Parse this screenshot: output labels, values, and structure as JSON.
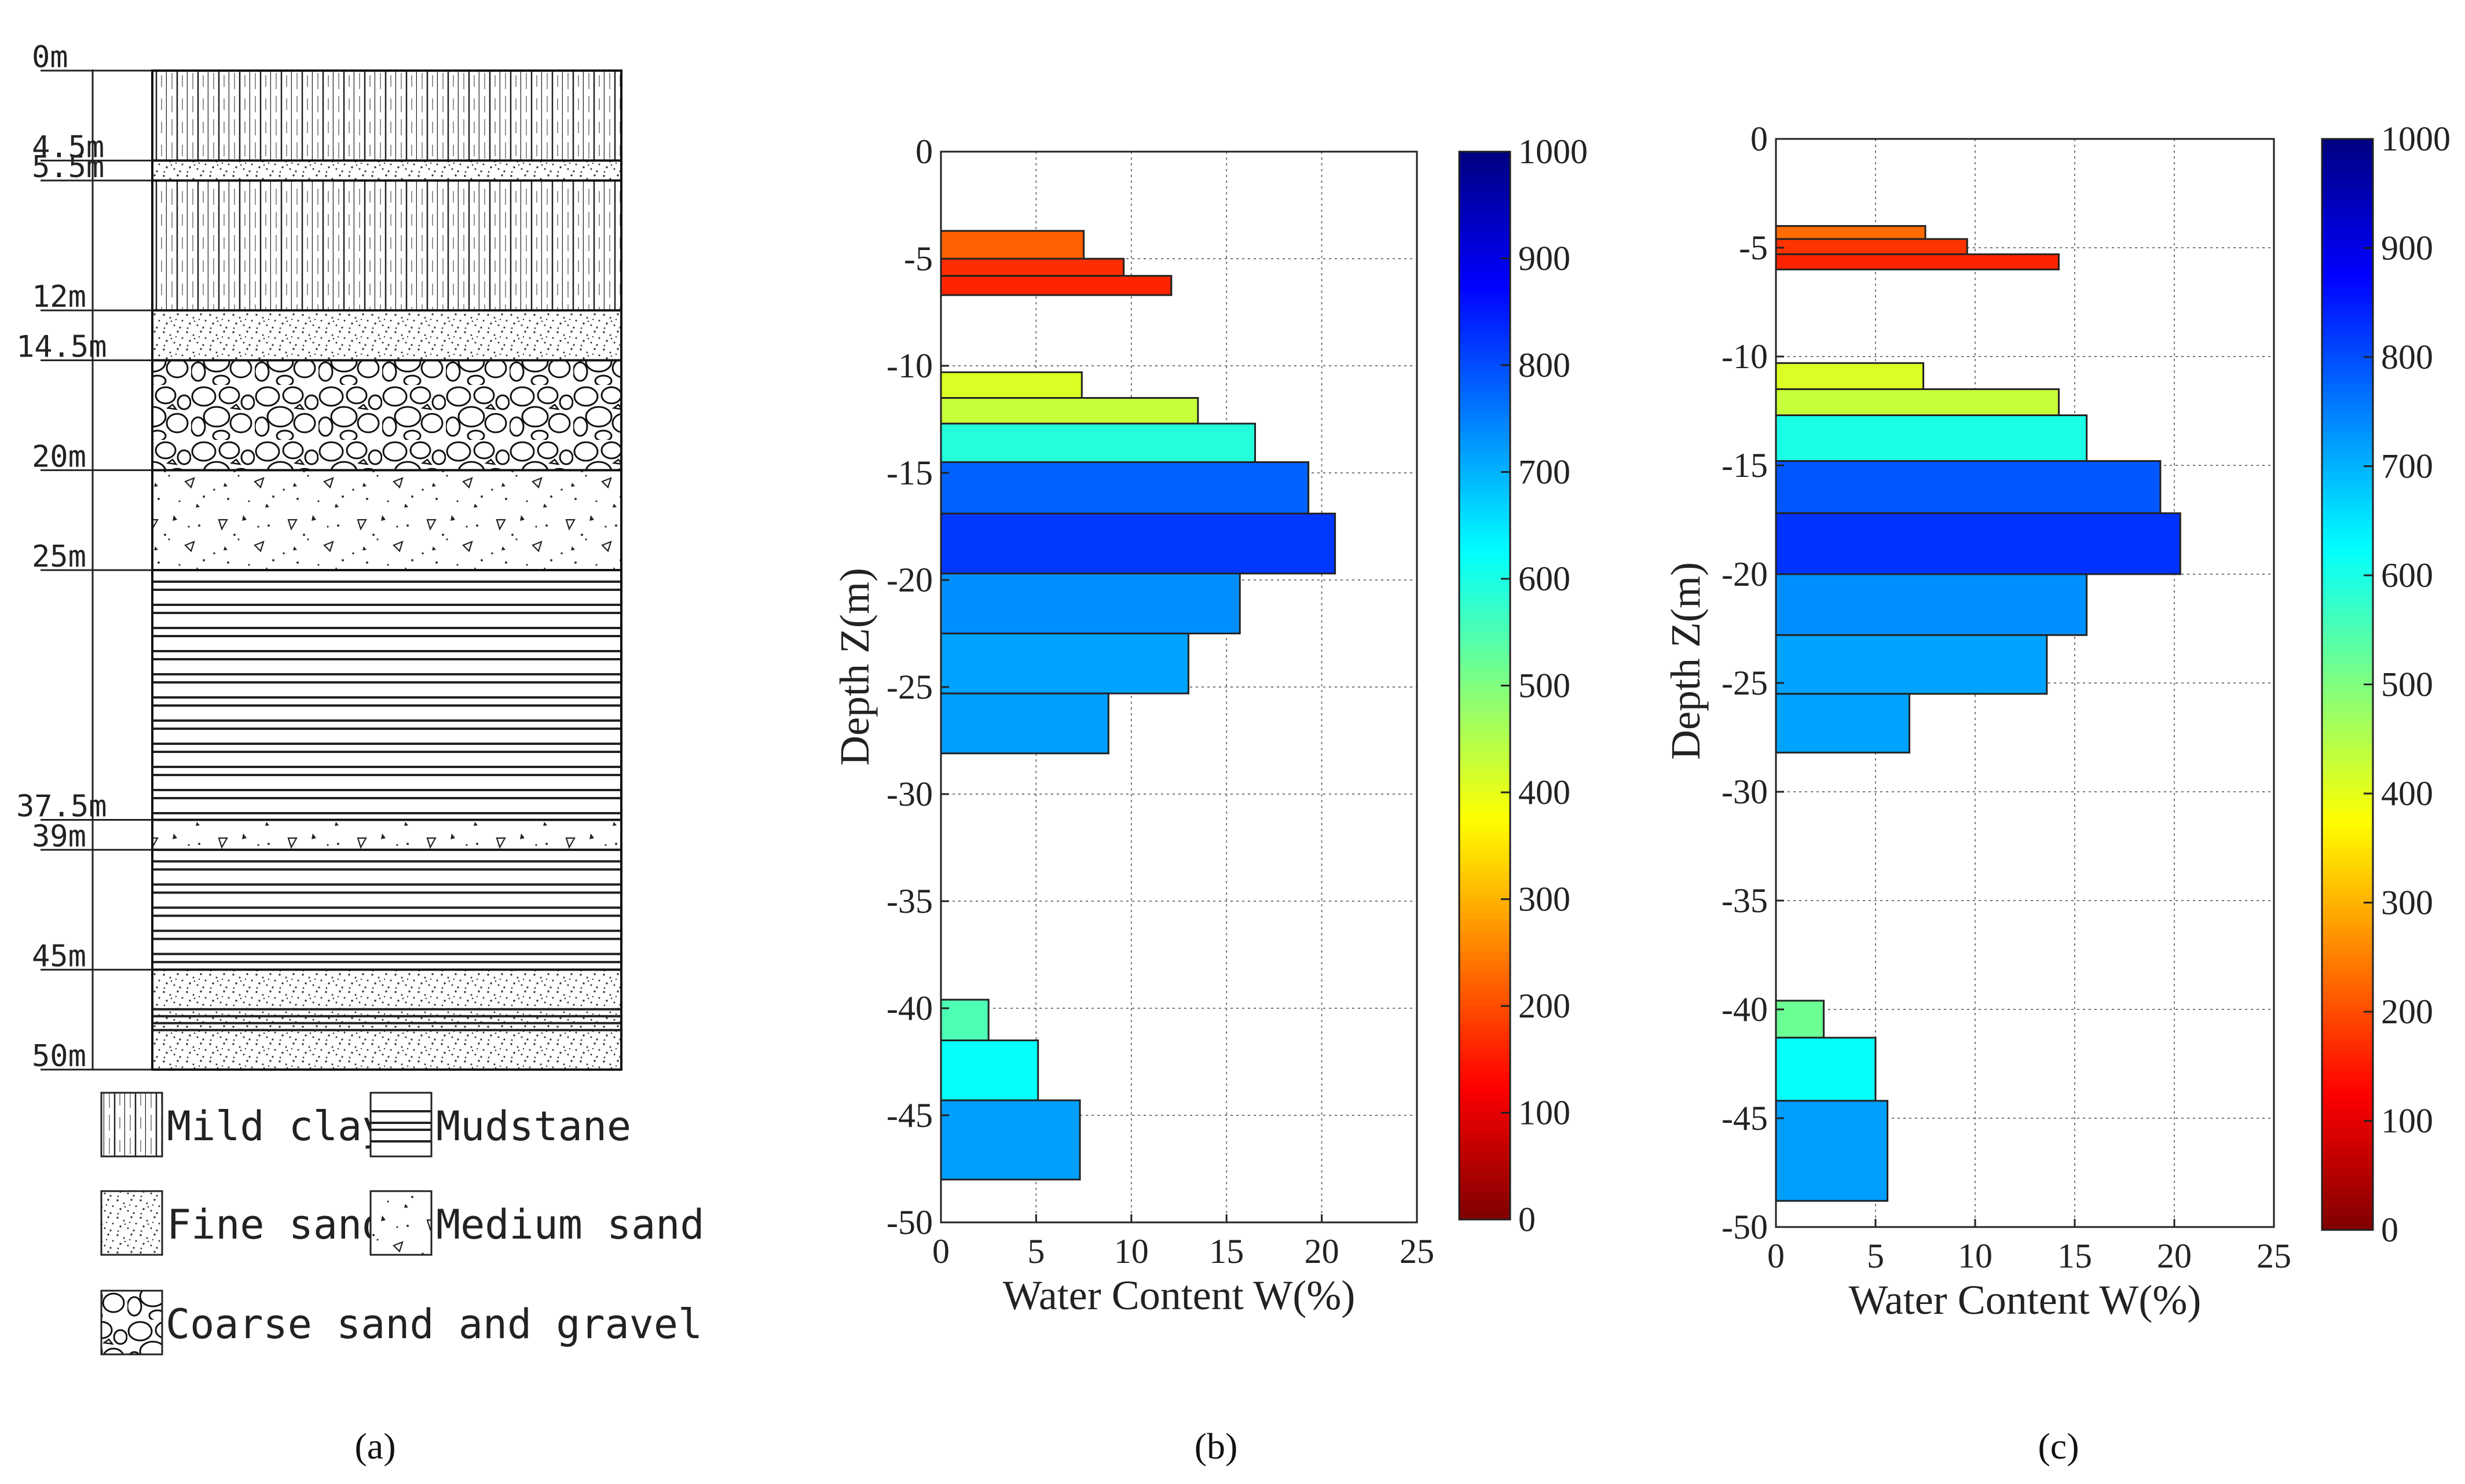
{
  "panel_labels": [
    "(a)",
    "(b)",
    "(c)"
  ],
  "stratigraphy": {
    "depth_labels": [
      "0m",
      "4.5m",
      "5.5m",
      "12m",
      "14.5m",
      "20m",
      "25m",
      "37.5m",
      "39m",
      "45m",
      "50m"
    ],
    "layers": [
      {
        "top": 0,
        "bottom": 4.5,
        "soil": "clay"
      },
      {
        "top": 4.5,
        "bottom": 5.5,
        "soil": "fine"
      },
      {
        "top": 5.5,
        "bottom": 12,
        "soil": "clay"
      },
      {
        "top": 12,
        "bottom": 14.5,
        "soil": "fine"
      },
      {
        "top": 14.5,
        "bottom": 20,
        "soil": "gravel"
      },
      {
        "top": 20,
        "bottom": 25,
        "soil": "medium"
      },
      {
        "top": 25,
        "bottom": 37.5,
        "soil": "mud"
      },
      {
        "top": 37.5,
        "bottom": 39,
        "soil": "medium"
      },
      {
        "top": 39,
        "bottom": 45,
        "soil": "mud"
      },
      {
        "top": 45,
        "bottom": 50,
        "soil": "fine_mud"
      }
    ],
    "legend": {
      "mild_clay": "Mild clay",
      "mudstone": "Mudstane",
      "fine_sand": "Fine sand",
      "medium_sand": "Medium sand",
      "coarse_sand_gravel": "Coarse sand and gravel"
    }
  },
  "chart_data": [
    {
      "type": "bar",
      "orientation": "horizontal",
      "xlabel": "Water Content W(%)",
      "ylabel": "Depth Z(m)",
      "xlim": [
        0,
        25
      ],
      "ylim": [
        -50,
        0
      ],
      "xticks": [
        "0",
        "5",
        "10",
        "15",
        "20",
        "25"
      ],
      "yticks": [
        "0",
        "-5",
        "-10",
        "-15",
        "-20",
        "-25",
        "-30",
        "-35",
        "-40",
        "-45",
        "-50"
      ],
      "grid": true,
      "colorbar": {
        "min": 0,
        "max": 1000,
        "ticks": [
          "0",
          "100",
          "200",
          "300",
          "400",
          "500",
          "600",
          "700",
          "800",
          "900",
          "1000"
        ],
        "colormap": "jet_reversed"
      },
      "bars": [
        {
          "top": -3.7,
          "bottom": -5.0,
          "value": 7.5,
          "color_value": 220
        },
        {
          "top": -5.0,
          "bottom": -5.8,
          "value": 9.6,
          "color_value": 170
        },
        {
          "top": -5.8,
          "bottom": -6.7,
          "value": 12.1,
          "color_value": 160
        },
        {
          "top": -10.3,
          "bottom": -11.5,
          "value": 7.4,
          "color_value": 410
        },
        {
          "top": -11.5,
          "bottom": -12.7,
          "value": 13.5,
          "color_value": 430
        },
        {
          "top": -12.7,
          "bottom": -14.5,
          "value": 16.5,
          "color_value": 590
        },
        {
          "top": -14.5,
          "bottom": -16.9,
          "value": 19.3,
          "color_value": 780
        },
        {
          "top": -16.9,
          "bottom": -19.7,
          "value": 20.7,
          "color_value": 820
        },
        {
          "top": -19.7,
          "bottom": -22.5,
          "value": 15.7,
          "color_value": 735
        },
        {
          "top": -22.5,
          "bottom": -25.3,
          "value": 13.0,
          "color_value": 715
        },
        {
          "top": -25.3,
          "bottom": -28.1,
          "value": 8.8,
          "color_value": 720
        },
        {
          "top": -39.6,
          "bottom": -41.5,
          "value": 2.5,
          "color_value": 550
        },
        {
          "top": -41.5,
          "bottom": -44.3,
          "value": 5.1,
          "color_value": 620
        },
        {
          "top": -44.3,
          "bottom": -48.0,
          "value": 7.3,
          "color_value": 720
        }
      ]
    },
    {
      "type": "bar",
      "orientation": "horizontal",
      "xlabel": "Water Content W(%)",
      "ylabel": "Depth Z(m)",
      "xlim": [
        0,
        25
      ],
      "ylim": [
        -50,
        0
      ],
      "xticks": [
        "0",
        "5",
        "10",
        "15",
        "20",
        "25"
      ],
      "yticks": [
        "0",
        "-5",
        "-10",
        "-15",
        "-20",
        "-25",
        "-30",
        "-35",
        "-40",
        "-45",
        "-50"
      ],
      "grid": true,
      "colorbar": {
        "min": 0,
        "max": 1000,
        "ticks": [
          "0",
          "100",
          "200",
          "300",
          "400",
          "500",
          "600",
          "700",
          "800",
          "900",
          "1000"
        ],
        "colormap": "jet_reversed"
      },
      "bars": [
        {
          "top": -4.0,
          "bottom": -4.6,
          "value": 7.5,
          "color_value": 230
        },
        {
          "top": -4.6,
          "bottom": -5.3,
          "value": 9.6,
          "color_value": 175
        },
        {
          "top": -5.3,
          "bottom": -6.0,
          "value": 14.2,
          "color_value": 160
        },
        {
          "top": -10.3,
          "bottom": -11.5,
          "value": 7.4,
          "color_value": 410
        },
        {
          "top": -11.5,
          "bottom": -12.7,
          "value": 14.2,
          "color_value": 430
        },
        {
          "top": -12.7,
          "bottom": -14.8,
          "value": 15.6,
          "color_value": 600
        },
        {
          "top": -14.8,
          "bottom": -17.2,
          "value": 19.3,
          "color_value": 790
        },
        {
          "top": -17.2,
          "bottom": -20.0,
          "value": 20.3,
          "color_value": 825
        },
        {
          "top": -20.0,
          "bottom": -22.8,
          "value": 15.6,
          "color_value": 735
        },
        {
          "top": -22.8,
          "bottom": -25.5,
          "value": 13.6,
          "color_value": 715
        },
        {
          "top": -25.5,
          "bottom": -28.2,
          "value": 6.7,
          "color_value": 715
        },
        {
          "top": -39.6,
          "bottom": -41.3,
          "value": 2.4,
          "color_value": 520
        },
        {
          "top": -41.3,
          "bottom": -44.2,
          "value": 5.0,
          "color_value": 620
        },
        {
          "top": -44.2,
          "bottom": -48.8,
          "value": 5.6,
          "color_value": 720
        }
      ]
    }
  ]
}
